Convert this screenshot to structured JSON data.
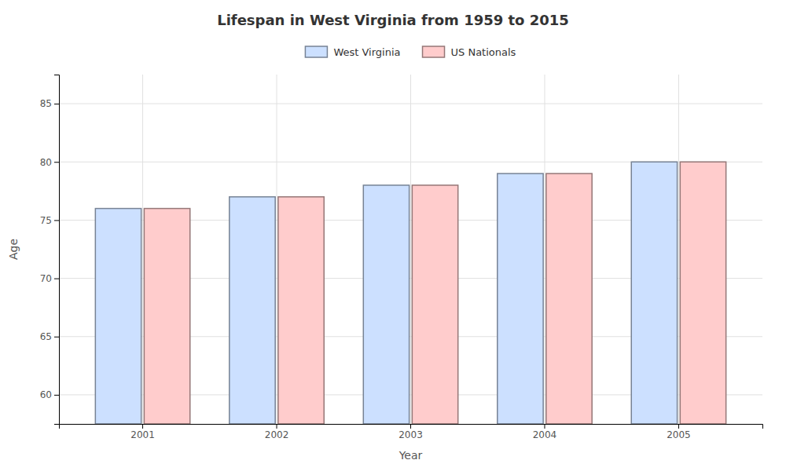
{
  "chart_data": {
    "type": "bar",
    "title": "Lifespan in West Virginia from 1959 to 2015",
    "xlabel": "Year",
    "ylabel": "Age",
    "categories": [
      "2001",
      "2002",
      "2003",
      "2004",
      "2005"
    ],
    "series": [
      {
        "name": "West Virginia",
        "color": "#cce0ff",
        "values": [
          76,
          77,
          78,
          79,
          80
        ]
      },
      {
        "name": "US Nationals",
        "color": "#ffcccc",
        "values": [
          76,
          77,
          78,
          79,
          80
        ]
      }
    ],
    "ylim": [
      57.5,
      87.5
    ],
    "yticks": [
      60,
      65,
      70,
      75,
      80,
      85
    ],
    "grid": true,
    "legend": "top"
  }
}
